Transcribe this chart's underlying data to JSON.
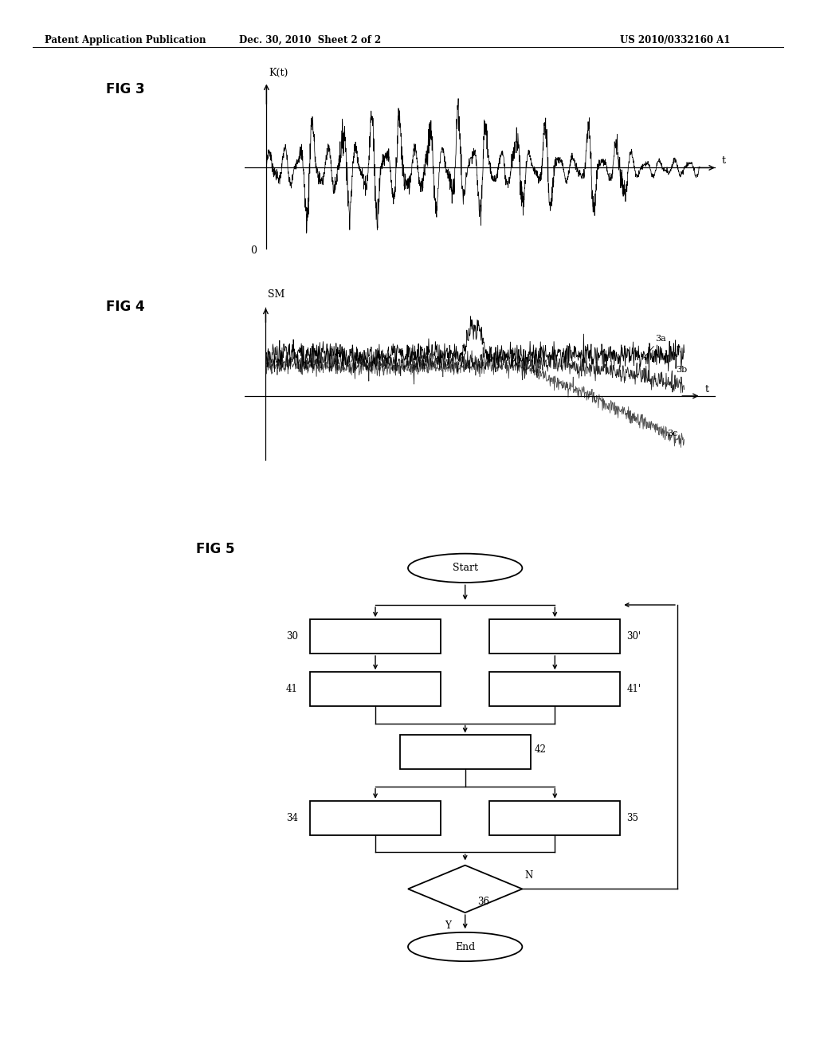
{
  "header_left": "Patent Application Publication",
  "header_center": "Dec. 30, 2010  Sheet 2 of 2",
  "header_right": "US 2010/0332160 A1",
  "fig3_label": "FIG 3",
  "fig3_ylabel": "K(t)",
  "fig3_xlabel": "t",
  "fig3_zero": "0",
  "fig4_label": "FIG 4",
  "fig4_ylabel": "SM",
  "fig4_xlabel": "t",
  "fig4_curve_labels": [
    "3a",
    "3b",
    "3c"
  ],
  "fig5_label": "FIG 5",
  "start_label": "Start",
  "end_label": "End",
  "label_30": "30",
  "label_30p": "30'",
  "label_41": "41",
  "label_41p": "41'",
  "label_42": "42",
  "label_34": "34",
  "label_35": "35",
  "label_36": "36",
  "label_N": "N",
  "label_Y": "Y",
  "background_color": "#ffffff",
  "text_color": "#000000"
}
